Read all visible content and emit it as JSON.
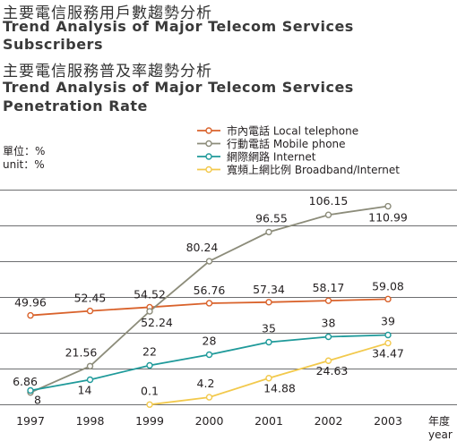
{
  "titles": {
    "subscribers_zh": "主要電信服務用戶數趨勢分析",
    "subscribers_en_line1": "Trend Analysis of Major Telecom Services",
    "subscribers_en_line2": "Subscribers",
    "penetration_zh": "主要電信服務普及率趨勢分析",
    "penetration_en_line1": "Trend Analysis of Major Telecom Services",
    "penetration_en_line2": "Penetration Rate"
  },
  "chart_data": {
    "type": "line",
    "unit_zh": "單位：%",
    "unit_en": "unit：%",
    "xlabel_zh": "年度",
    "xlabel_en": "year",
    "x": [
      "1997",
      "1998",
      "1999",
      "2000",
      "2001",
      "2002",
      "2003"
    ],
    "ylim": [
      -5,
      135
    ],
    "grid": true,
    "legend_position": "top-right",
    "series": [
      {
        "name": "市內電話 Local telephone",
        "color": "#d9622b",
        "values": [
          49.96,
          52.45,
          54.52,
          56.76,
          57.34,
          58.17,
          59.08
        ],
        "labels": [
          "49.96",
          "52.45",
          "54.52",
          "56.76",
          "57.34",
          "58.17",
          "59.08"
        ]
      },
      {
        "name": "行動電話 Mobile phone",
        "color": "#8c8c7a",
        "values": [
          6.86,
          21.56,
          52.24,
          80.24,
          96.55,
          106.15,
          110.99
        ],
        "labels": [
          "6.86",
          "21.56",
          "52.24",
          "80.24",
          "96.55",
          "106.15",
          "110.99"
        ]
      },
      {
        "name": "網際網路 Internet",
        "color": "#1f9a9a",
        "values": [
          8,
          14,
          22,
          28,
          35,
          38,
          39
        ],
        "labels": [
          "8",
          "14",
          "22",
          "28",
          "35",
          "38",
          "39"
        ]
      },
      {
        "name": "寬頻上網比例 Broadband/Internet",
        "color": "#f2c94c",
        "values": [
          null,
          null,
          0.1,
          4.2,
          14.88,
          24.63,
          34.47
        ],
        "labels": [
          null,
          null,
          "0.1",
          "4.2",
          "14.88",
          "24.63",
          "34.47"
        ]
      }
    ]
  }
}
